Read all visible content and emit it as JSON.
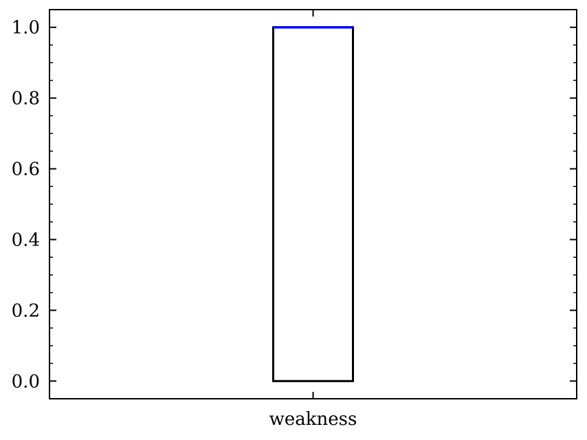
{
  "chart_data": {
    "type": "box",
    "title": "",
    "xlabel": "",
    "ylabel": "",
    "categories": [
      "weakness"
    ],
    "boxes": [
      {
        "category": "weakness",
        "q1": 0.0,
        "median": 1.0,
        "q3": 1.0,
        "whisker_low": 0.0,
        "whisker_high": 1.0
      }
    ],
    "ylim": [
      -0.05,
      1.05
    ],
    "y_ticks": [
      0.0,
      0.2,
      0.4,
      0.6,
      0.8,
      1.0
    ],
    "y_tick_labels": [
      "0.0",
      "0.2",
      "0.4",
      "0.6",
      "0.8",
      "1.0"
    ],
    "y_minor_step": 0.05,
    "grid": false,
    "colors": {
      "box": "#000000",
      "median": "#0000ff"
    }
  }
}
